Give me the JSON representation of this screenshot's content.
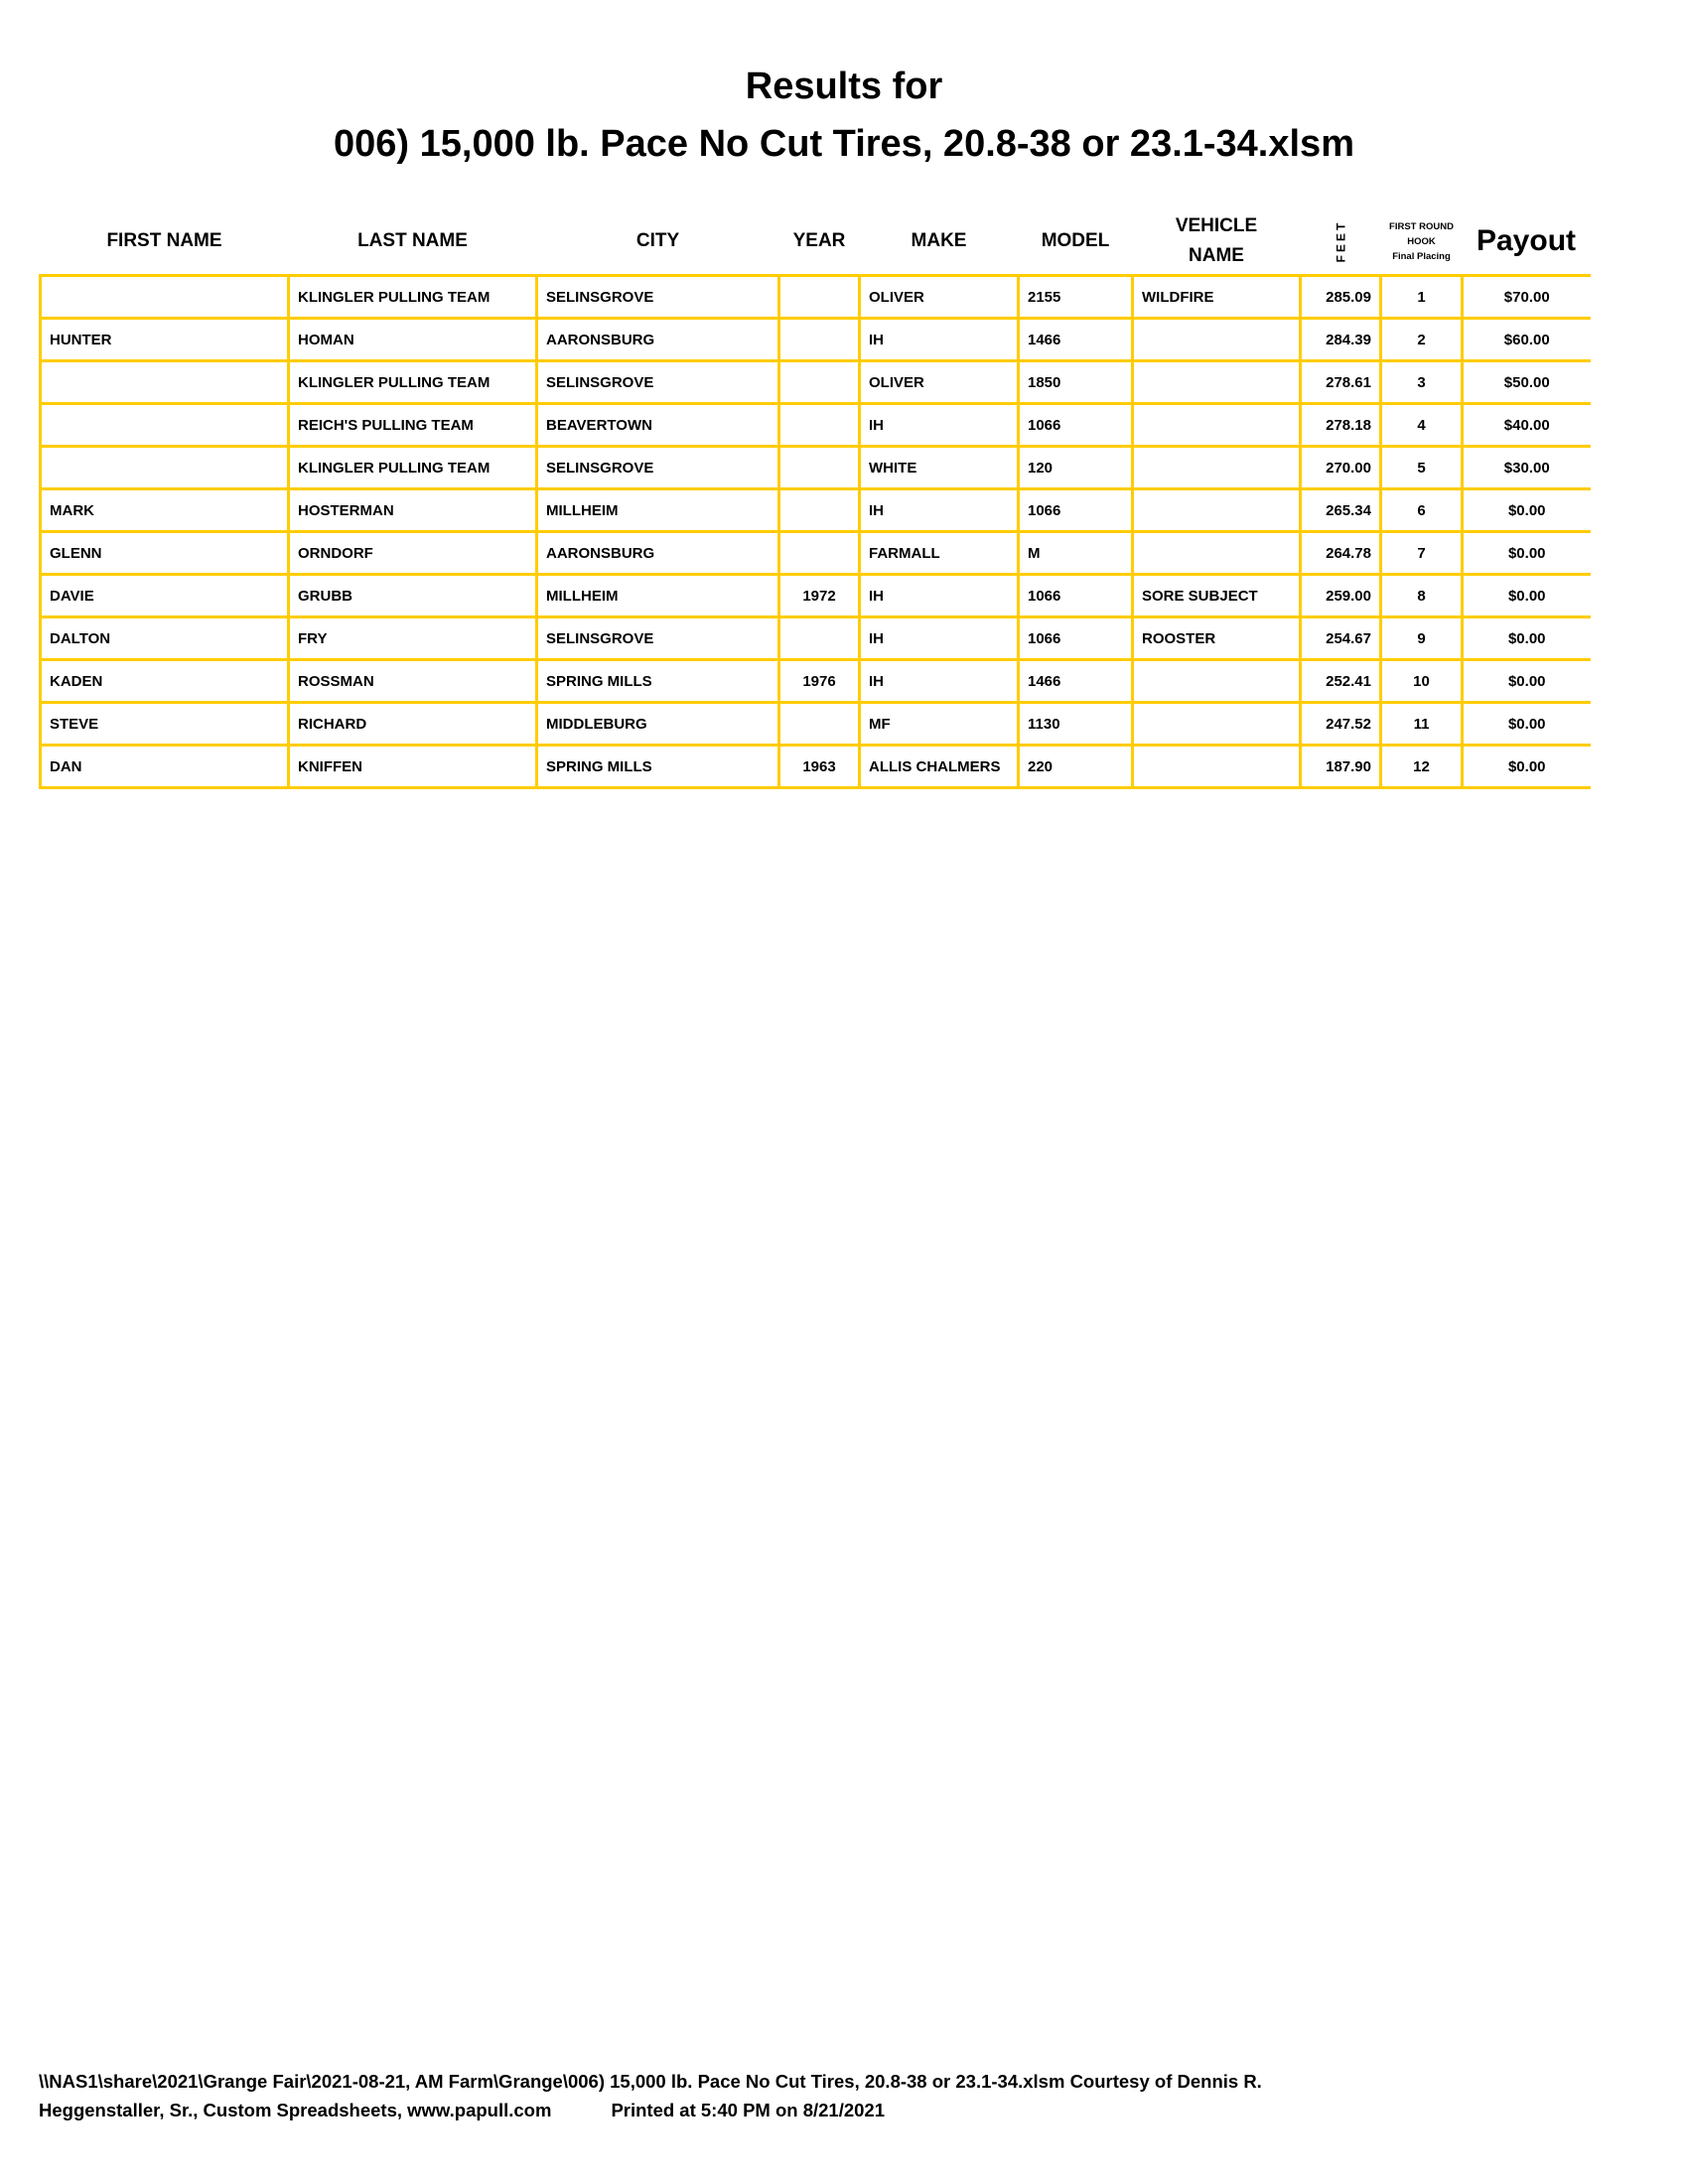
{
  "title": {
    "line1": "Results for",
    "line2": "006) 15,000 lb. Pace No Cut Tires, 20.8-38 or 23.1-34.xlsm"
  },
  "colors": {
    "grid": "#FFCC00",
    "text": "#000000"
  },
  "columns": {
    "first_name": "FIRST NAME",
    "last_name": "LAST NAME",
    "city": "CITY",
    "year": "YEAR",
    "make": "MAKE",
    "model": "MODEL",
    "vehicle_name_1": "VEHICLE",
    "vehicle_name_2": "NAME",
    "feet": "FEET",
    "hook_1": "FIRST ROUND",
    "hook_2": "HOOK",
    "hook_3": "Final Placing",
    "payout": "Payout"
  },
  "rows": [
    {
      "first": "",
      "last": "KLINGLER PULLING TEAM",
      "city": "SELINSGROVE",
      "year": "",
      "make": "OLIVER",
      "model": "2155",
      "vehicle": "WILDFIRE",
      "feet": "285.09",
      "place": "1",
      "payout": "$70.00"
    },
    {
      "first": "HUNTER",
      "last": "HOMAN",
      "city": "AARONSBURG",
      "year": "",
      "make": "IH",
      "model": "1466",
      "vehicle": "",
      "feet": "284.39",
      "place": "2",
      "payout": "$60.00"
    },
    {
      "first": "",
      "last": "KLINGLER PULLING TEAM",
      "city": "SELINSGROVE",
      "year": "",
      "make": "OLIVER",
      "model": "1850",
      "vehicle": "",
      "feet": "278.61",
      "place": "3",
      "payout": "$50.00"
    },
    {
      "first": "",
      "last": "REICH'S PULLING TEAM",
      "city": "BEAVERTOWN",
      "year": "",
      "make": "IH",
      "model": "1066",
      "vehicle": "",
      "feet": "278.18",
      "place": "4",
      "payout": "$40.00"
    },
    {
      "first": "",
      "last": "KLINGLER PULLING TEAM",
      "city": "SELINSGROVE",
      "year": "",
      "make": "WHITE",
      "model": "120",
      "vehicle": "",
      "feet": "270.00",
      "place": "5",
      "payout": "$30.00"
    },
    {
      "first": "MARK",
      "last": "HOSTERMAN",
      "city": "MILLHEIM",
      "year": "",
      "make": "IH",
      "model": "1066",
      "vehicle": "",
      "feet": "265.34",
      "place": "6",
      "payout": "$0.00"
    },
    {
      "first": "GLENN",
      "last": "ORNDORF",
      "city": "AARONSBURG",
      "year": "",
      "make": "FARMALL",
      "model": "M",
      "vehicle": "",
      "feet": "264.78",
      "place": "7",
      "payout": "$0.00"
    },
    {
      "first": "DAVIE",
      "last": "GRUBB",
      "city": "MILLHEIM",
      "year": "1972",
      "make": "IH",
      "model": "1066",
      "vehicle": "SORE SUBJECT",
      "feet": "259.00",
      "place": "8",
      "payout": "$0.00"
    },
    {
      "first": "DALTON",
      "last": "FRY",
      "city": "SELINSGROVE",
      "year": "",
      "make": "IH",
      "model": "1066",
      "vehicle": "ROOSTER",
      "feet": "254.67",
      "place": "9",
      "payout": "$0.00"
    },
    {
      "first": "KADEN",
      "last": "ROSSMAN",
      "city": "SPRING MILLS",
      "year": "1976",
      "make": "IH",
      "model": "1466",
      "vehicle": "",
      "feet": "252.41",
      "place": "10",
      "payout": "$0.00"
    },
    {
      "first": "STEVE",
      "last": "RICHARD",
      "city": "MIDDLEBURG",
      "year": "",
      "make": "MF",
      "model": "1130",
      "vehicle": "",
      "feet": "247.52",
      "place": "11",
      "payout": "$0.00"
    },
    {
      "first": "DAN",
      "last": "KNIFFEN",
      "city": "SPRING MILLS",
      "year": "1963",
      "make": "ALLIS CHALMERS",
      "model": "220",
      "vehicle": "",
      "feet": "187.90",
      "place": "12",
      "payout": "$0.00"
    }
  ],
  "footer": {
    "line1": "\\\\NAS1\\share\\2021\\Grange Fair\\2021-08-21, AM Farm\\Grange\\006) 15,000 lb. Pace No Cut Tires, 20.8-38 or 23.1-34.xlsm  Courtesy of Dennis R.",
    "line2": "Heggenstaller, Sr., Custom Spreadsheets, www.papull.com",
    "printed": "Printed at 5:40 PM on 8/21/2021"
  }
}
